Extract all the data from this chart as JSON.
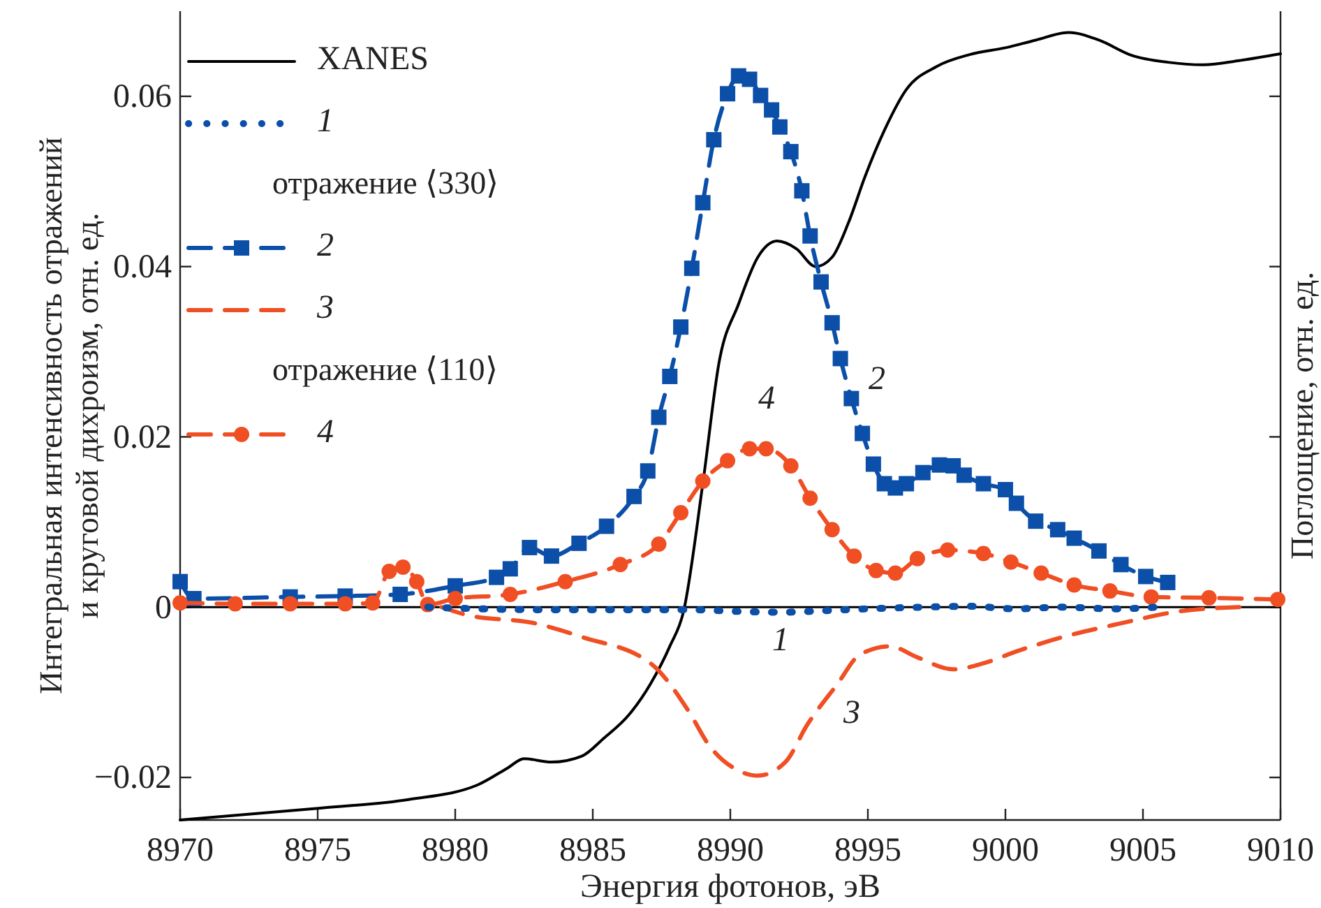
{
  "chart_data": {
    "type": "line",
    "xlabel": "Энергия фотонов, эВ",
    "ylabel": "Интегральная интенсивность отражений и круговой дихроизм, отн. ед.",
    "y2label": "Поглощение, отн. ед.",
    "xlim": [
      8970,
      9010
    ],
    "xticks": [
      8970,
      8975,
      8980,
      8985,
      8990,
      8995,
      9000,
      9005,
      9010
    ],
    "ylim": [
      -0.025,
      0.07
    ],
    "yticks": [
      -0.02,
      0,
      0.02,
      0.04,
      0.06
    ],
    "legend": "top left",
    "ref_lines": [
      {
        "axis": "y",
        "value": 0,
        "color": "#000000"
      }
    ],
    "annotations": [
      "отражение ⟨330⟩",
      "отражение ⟨110⟩",
      "1",
      "2",
      "3",
      "4"
    ],
    "series": [
      {
        "name": "XANES",
        "color": "#000000",
        "line_style": "solid",
        "marker": "none",
        "x": [
          8970,
          8975.1,
          8978.3,
          8980.8,
          8981.9,
          8982.5,
          8983.5,
          8984.6,
          8985.4,
          8986.3,
          8987.1,
          8987.8,
          8988.3,
          8989.0,
          8989.6,
          8990.3,
          8991.0,
          8991.7,
          8992.4,
          8993.1,
          8993.7,
          8994.3,
          8994.9,
          8995.6,
          8996.4,
          8997.5,
          8998.7,
          9000.0,
          9001.1,
          9002.3,
          9003.4,
          9004.6,
          9005.9,
          9007.2,
          9008.5,
          9010
        ],
        "values": [
          -0.025,
          -0.0236,
          -0.0226,
          -0.0209,
          -0.0189,
          -0.0178,
          -0.0182,
          -0.0175,
          -0.0154,
          -0.0127,
          -0.009,
          -0.0046,
          -0.0005,
          0.0145,
          0.0289,
          0.0356,
          0.0411,
          0.043,
          0.0421,
          0.04,
          0.0411,
          0.0452,
          0.0506,
          0.056,
          0.0608,
          0.0635,
          0.0649,
          0.0657,
          0.0666,
          0.0675,
          0.0666,
          0.0648,
          0.064,
          0.0637,
          0.0642,
          0.065
        ]
      },
      {
        "name": "1",
        "color": "#0b4fa8",
        "line_style": "dotted",
        "marker": "none",
        "x": [
          8979,
          8983,
          8988.5,
          8990.3,
          8991.8,
          8993.5,
          8995,
          8997,
          8998.7,
          9000.4,
          9002,
          9004,
          9005.5
        ],
        "values": [
          0,
          -0.0003,
          -0.0003,
          -0.0005,
          -0.0006,
          -0.0004,
          -0.0002,
          0,
          0.0001,
          -0.0002,
          0,
          -0.0002,
          0
        ]
      },
      {
        "name": "2",
        "color": "#0b4fa8",
        "line_style": "dashed",
        "marker": "square",
        "x": [
          8970,
          8970.5,
          8974,
          8976,
          8978,
          8980,
          8981.5,
          8982,
          8982.7,
          8983.5,
          8984.5,
          8985.5,
          8986.5,
          8987,
          8987.4,
          8987.8,
          8988.2,
          8988.6,
          8989.0,
          8989.4,
          8989.9,
          8990.3,
          8990.7,
          8991.1,
          8991.5,
          8991.8,
          8992.2,
          8992.6,
          8992.9,
          8993.3,
          8993.7,
          8994.0,
          8994.4,
          8994.8,
          8995.2,
          8995.6,
          8996.0,
          8996.4,
          8997.0,
          8997.6,
          8998.1,
          8998.5,
          8999.2,
          9000.0,
          9000.4,
          9001.1,
          9001.9,
          9002.5,
          9003.4,
          9004.2,
          9005.1,
          9005.9
        ],
        "values": [
          0.003,
          0.001,
          0.0012,
          0.0013,
          0.0015,
          0.0025,
          0.0035,
          0.0045,
          0.007,
          0.006,
          0.0075,
          0.0095,
          0.013,
          0.016,
          0.0223,
          0.0271,
          0.0329,
          0.0398,
          0.0475,
          0.0549,
          0.0603,
          0.0624,
          0.062,
          0.0601,
          0.0584,
          0.0564,
          0.0535,
          0.0489,
          0.0436,
          0.0382,
          0.0334,
          0.0292,
          0.0245,
          0.0204,
          0.0168,
          0.0145,
          0.014,
          0.0145,
          0.0158,
          0.0167,
          0.0166,
          0.0155,
          0.0145,
          0.0138,
          0.0122,
          0.0101,
          0.0091,
          0.0081,
          0.0066,
          0.005,
          0.0036,
          0.0029
        ]
      },
      {
        "name": "3",
        "color": "#f04e23",
        "line_style": "dashed",
        "marker": "none",
        "x": [
          8979.5,
          8980.4,
          8982.9,
          8984.6,
          8987.1,
          8988.5,
          8989.2,
          8990.3,
          8991.0,
          8992.0,
          8992.8,
          8993.9,
          8994.7,
          8995.8,
          8996.8,
          8998.1,
          8999.2,
          9000.4,
          9002.1,
          9004.2,
          9006.3,
          9008.5
        ],
        "values": [
          0,
          -0.0009,
          -0.0019,
          -0.0035,
          -0.0066,
          -0.0123,
          -0.0161,
          -0.0192,
          -0.0198,
          -0.0182,
          -0.0138,
          -0.009,
          -0.0056,
          -0.0046,
          -0.0059,
          -0.0073,
          -0.0066,
          -0.0052,
          -0.0035,
          -0.0019,
          -0.0005,
          0
        ]
      },
      {
        "name": "4",
        "color": "#f04e23",
        "line_style": "dashed",
        "marker": "circle",
        "x": [
          8970,
          8972,
          8974,
          8976,
          8977,
          8977.6,
          8978.1,
          8978.6,
          8979,
          8980,
          8982,
          8984,
          8986,
          8987.4,
          8988.2,
          8989.0,
          8989.9,
          8990.7,
          8991.3,
          8992.2,
          8992.9,
          8993.7,
          8994.5,
          8995.3,
          8996.0,
          8996.8,
          8997.9,
          8999.2,
          9000.2,
          9001.3,
          9002.5,
          9003.8,
          9005.3,
          9007.4,
          9009.9
        ],
        "values": [
          0.0005,
          0.0004,
          0.0004,
          0.0004,
          0.0005,
          0.0042,
          0.0047,
          0.003,
          0.0003,
          0.001,
          0.0015,
          0.003,
          0.005,
          0.0074,
          0.0111,
          0.0148,
          0.0172,
          0.0186,
          0.0186,
          0.0166,
          0.0128,
          0.0091,
          0.006,
          0.0043,
          0.004,
          0.0057,
          0.0067,
          0.0063,
          0.0053,
          0.004,
          0.0026,
          0.0019,
          0.0012,
          0.0011,
          0.0009
        ]
      }
    ]
  }
}
